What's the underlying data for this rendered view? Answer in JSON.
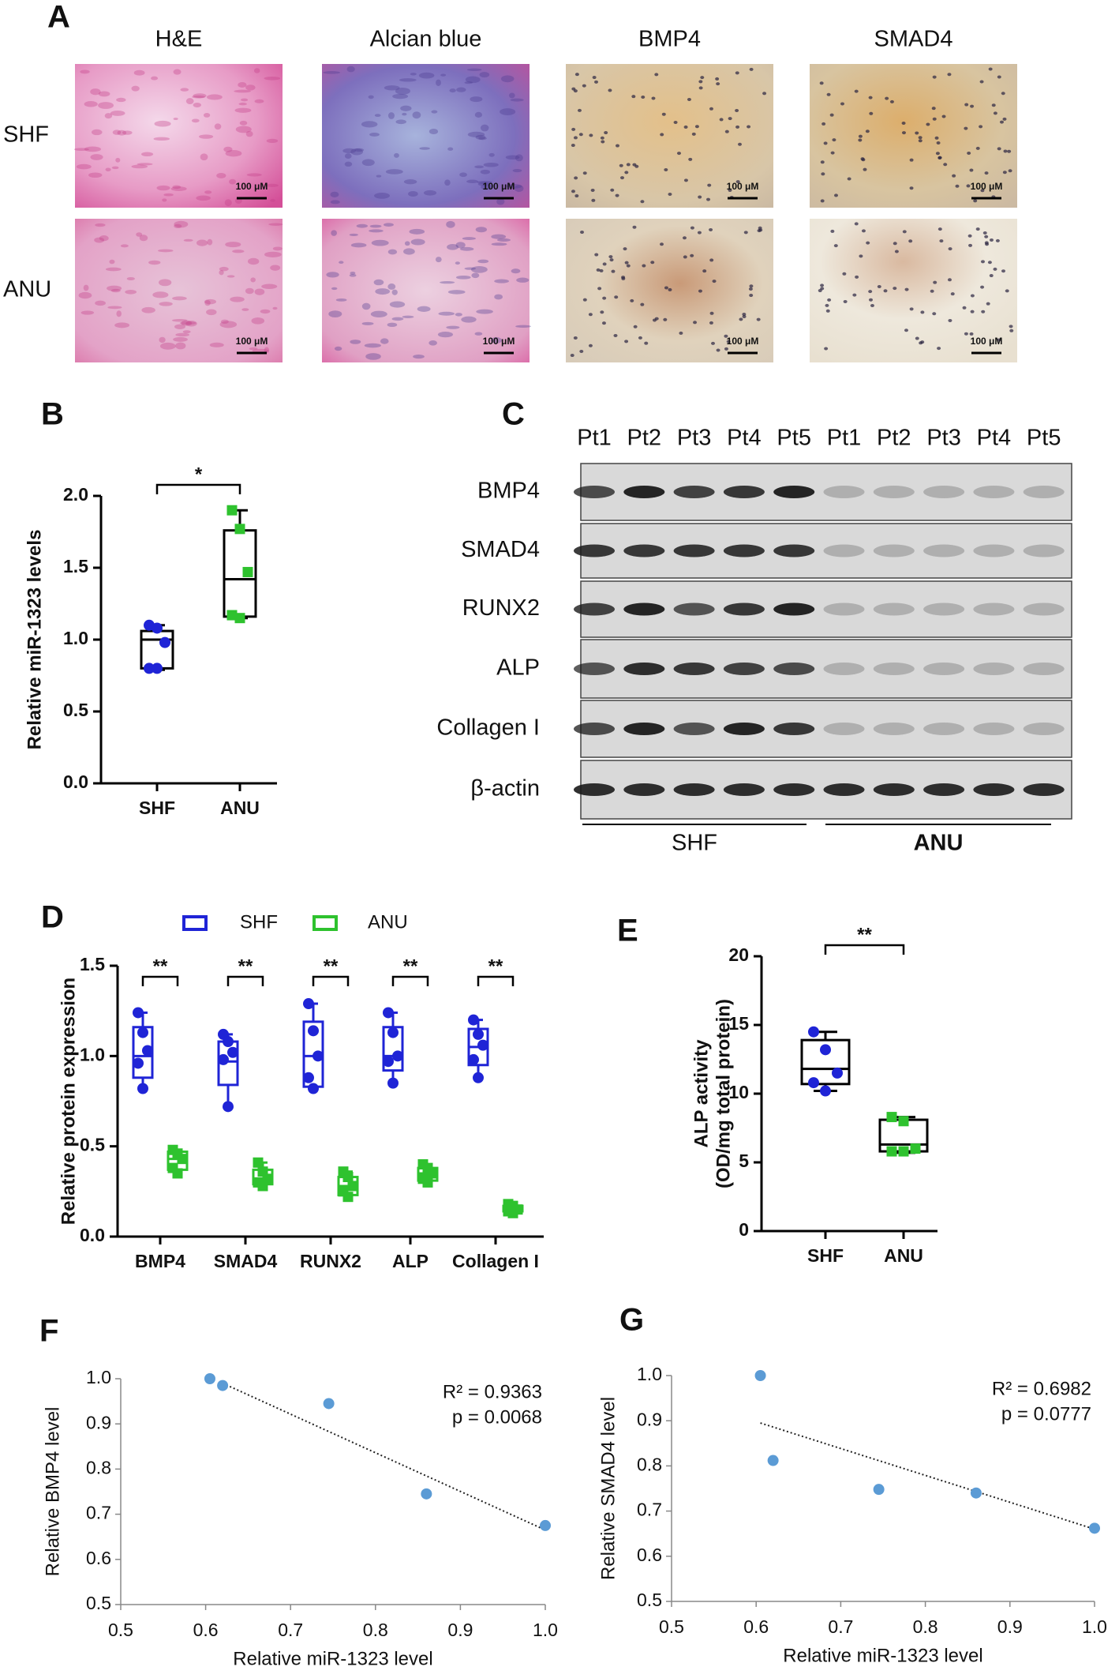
{
  "panel_a": {
    "panel": "A",
    "columns": [
      "H&E",
      "Alcian blue",
      "BMP4",
      "SMAD4"
    ],
    "rows": [
      "SHF",
      "ANU"
    ],
    "scale_bars": [
      "100 μM",
      "100 μM",
      "100 μM",
      "100 μM",
      "100 μM",
      "100 μM",
      "100 μM",
      "100 μM"
    ]
  },
  "panel_c": {
    "panel": "C",
    "lanes": [
      "Pt1",
      "Pt2",
      "Pt3",
      "Pt4",
      "Pt5",
      "Pt1",
      "Pt2",
      "Pt3",
      "Pt4",
      "Pt5"
    ],
    "proteins": [
      "BMP4",
      "SMAD4",
      "RUNX2",
      "ALP",
      "Collagen I",
      "β-actin"
    ],
    "groups": [
      "SHF",
      "ANU"
    ]
  },
  "chart_data": [
    {
      "type": "box",
      "panel": "B",
      "ylabel": "Relative miR-1323 levels",
      "categories": [
        "SHF",
        "ANU"
      ],
      "ylim": [
        0,
        2
      ],
      "yticks": [
        {
          "value": 0,
          "label": "0.0"
        },
        0.5,
        {
          "value": 1,
          "label": "1.0"
        },
        1.5,
        {
          "value": 2,
          "label": "2.0"
        }
      ],
      "significance": [
        "*"
      ],
      "series": [
        {
          "color": "#1f24d6",
          "marker": "circle",
          "boxes": [
            {
              "points": [
                1.1,
                1.08,
                0.98,
                0.8,
                0.8
              ],
              "low": 0.79,
              "q1": 0.8,
              "median": 1.0,
              "q3": 1.06,
              "high": 1.1
            },
            null
          ]
        },
        {
          "color": "#2ec22e",
          "marker": "square",
          "boxes": [
            null,
            {
              "points": [
                1.9,
                1.77,
                1.47,
                1.17,
                1.15
              ],
              "low": 1.15,
              "q1": 1.16,
              "median": 1.42,
              "q3": 1.76,
              "high": 1.9
            }
          ]
        }
      ]
    },
    {
      "type": "box",
      "panel": "D",
      "ylabel": "Relative protein expression",
      "categories": [
        "BMP4",
        "SMAD4",
        "RUNX2",
        "ALP",
        "Collagen I"
      ],
      "ylim": [
        0,
        1.5
      ],
      "yticks": [
        {
          "value": 0,
          "label": "0.0"
        },
        0.5,
        {
          "value": 1,
          "label": "1.0"
        },
        1.5
      ],
      "significance": [
        "**",
        "**",
        "**",
        "**",
        "**"
      ],
      "series": [
        {
          "name": "SHF",
          "color": "#1f24d6",
          "marker": "circle",
          "boxes": [
            {
              "points": [
                1.24,
                1.13,
                1.03,
                0.96,
                0.82
              ],
              "low": 0.82,
              "q1": 0.88,
              "median": 1.0,
              "q3": 1.16,
              "high": 1.24
            },
            {
              "points": [
                1.12,
                1.08,
                1.02,
                0.98,
                0.72
              ],
              "low": 0.72,
              "q1": 0.84,
              "median": 0.97,
              "q3": 1.08,
              "high": 1.12
            },
            {
              "points": [
                1.29,
                1.14,
                1.0,
                0.88,
                0.82
              ],
              "low": 0.82,
              "q1": 0.83,
              "median": 1.0,
              "q3": 1.19,
              "high": 1.29
            },
            {
              "points": [
                1.24,
                1.13,
                1.0,
                0.97,
                0.85
              ],
              "low": 0.85,
              "q1": 0.92,
              "median": 1.0,
              "q3": 1.16,
              "high": 1.24
            },
            {
              "points": [
                1.2,
                1.12,
                1.06,
                0.98,
                0.88
              ],
              "low": 0.88,
              "q1": 0.95,
              "median": 1.05,
              "q3": 1.15,
              "high": 1.2
            }
          ]
        },
        {
          "name": "ANU",
          "color": "#2ec22e",
          "marker": "square",
          "boxes": [
            {
              "points": [
                0.48,
                0.46,
                0.43,
                0.38,
                0.35
              ],
              "low": 0.35,
              "q1": 0.37,
              "median": 0.43,
              "q3": 0.47,
              "high": 0.48
            },
            {
              "points": [
                0.41,
                0.36,
                0.32,
                0.3,
                0.28
              ],
              "low": 0.28,
              "q1": 0.29,
              "median": 0.32,
              "q3": 0.37,
              "high": 0.41
            },
            {
              "points": [
                0.36,
                0.33,
                0.28,
                0.25,
                0.22
              ],
              "low": 0.22,
              "q1": 0.23,
              "median": 0.28,
              "q3": 0.33,
              "high": 0.36
            },
            {
              "points": [
                0.4,
                0.38,
                0.35,
                0.32,
                0.3
              ],
              "low": 0.3,
              "q1": 0.31,
              "median": 0.35,
              "q3": 0.38,
              "high": 0.4
            },
            {
              "points": [
                0.18,
                0.17,
                0.15,
                0.14,
                0.13
              ],
              "low": 0.13,
              "q1": 0.14,
              "median": 0.15,
              "q3": 0.17,
              "high": 0.18
            }
          ]
        }
      ]
    },
    {
      "type": "box",
      "panel": "E",
      "ylabel": [
        "ALP activity",
        "(OD/mg total protein)"
      ],
      "categories": [
        "SHF",
        "ANU"
      ],
      "ylim": [
        0,
        20
      ],
      "yticks": [
        0,
        5,
        10,
        15,
        20
      ],
      "significance": [
        "**"
      ],
      "series": [
        {
          "color": "#1f24d6",
          "marker": "circle",
          "boxes": [
            {
              "points": [
                14.5,
                13.2,
                11.5,
                10.8,
                10.2
              ],
              "low": 10.2,
              "q1": 10.7,
              "median": 11.8,
              "q3": 13.9,
              "high": 14.5
            },
            null
          ]
        },
        {
          "color": "#2ec22e",
          "marker": "square",
          "boxes": [
            null,
            {
              "points": [
                8.3,
                8.0,
                6.0,
                5.8,
                5.8
              ],
              "low": 5.7,
              "q1": 5.8,
              "median": 6.3,
              "q3": 8.1,
              "high": 8.3
            }
          ]
        }
      ]
    },
    {
      "type": "scatter",
      "panel": "F",
      "xlabel": "Relative miR-1323 level",
      "ylabel": "Relative BMP4 level",
      "x": [
        0.605,
        0.62,
        0.745,
        0.86,
        1.0
      ],
      "y": [
        1.0,
        0.985,
        0.945,
        0.745,
        0.675
      ],
      "color": "#5b9bd5",
      "trendline": {
        "x": [
          0.62,
          1.0
        ],
        "y": [
          0.99,
          0.665
        ]
      },
      "annotations": [
        "R² = 0.9363",
        "p = 0.0068"
      ],
      "xlim": [
        0.5,
        1
      ],
      "xticks": [
        0.5,
        0.6,
        0.7,
        0.8,
        0.9,
        {
          "value": 1,
          "label": "1.0"
        }
      ],
      "ylim": [
        0.5,
        1
      ],
      "yticks": [
        0.5,
        0.6,
        0.7,
        0.8,
        0.9,
        {
          "value": 1,
          "label": "1.0"
        }
      ]
    },
    {
      "type": "scatter",
      "panel": "G",
      "xlabel": "Relative miR-1323 level",
      "ylabel": "Relative SMAD4 level",
      "x": [
        0.605,
        0.62,
        0.745,
        0.86,
        1.0
      ],
      "y": [
        1.0,
        0.812,
        0.748,
        0.74,
        0.662
      ],
      "color": "#5b9bd5",
      "trendline": {
        "x": [
          0.605,
          1.0
        ],
        "y": [
          0.895,
          0.66
        ]
      },
      "annotations": [
        "R² = 0.6982",
        "p = 0.0777"
      ],
      "xlim": [
        0.5,
        1
      ],
      "xticks": [
        0.5,
        0.6,
        0.7,
        0.8,
        0.9,
        {
          "value": 1,
          "label": "1.0"
        }
      ],
      "ylim": [
        0.5,
        1
      ],
      "yticks": [
        0.5,
        0.6,
        0.7,
        0.8,
        0.9,
        {
          "value": 1,
          "label": "1.0"
        }
      ]
    }
  ]
}
